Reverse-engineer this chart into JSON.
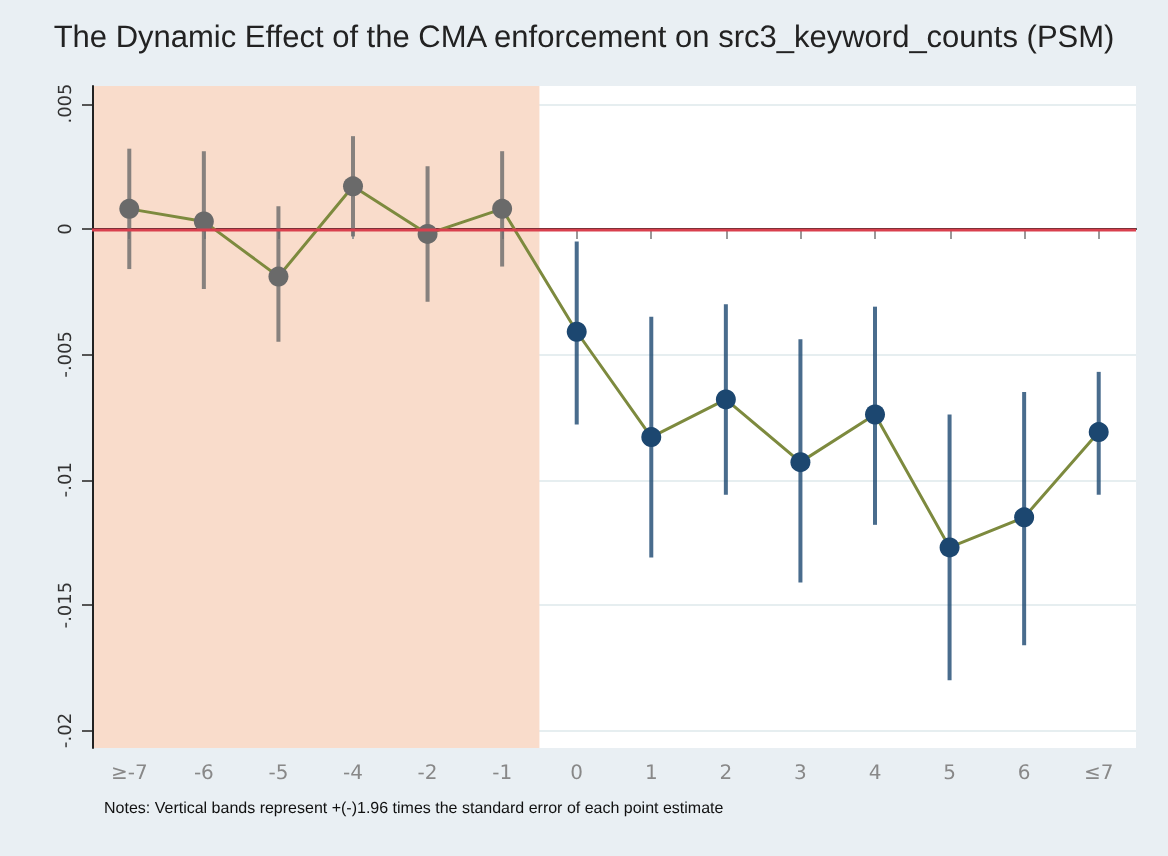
{
  "chart_data": {
    "type": "line",
    "title": "The Dynamic Effect of the CMA enforcement on src3_keyword_counts (PSM)",
    "categories": [
      "≥-7",
      "-6",
      "-5",
      "-4",
      "-2",
      "-1",
      "0",
      "1",
      "2",
      "3",
      "4",
      "5",
      "6",
      "≤7"
    ],
    "series": [
      {
        "color": "#7d8a3e",
        "colors": [
          "#6a6a6a",
          "#6a6a6a",
          "#6a6a6a",
          "#6a6a6a",
          "#6a6a6a",
          "#6a6a6a",
          "#1c4770",
          "#1c4770",
          "#1c4770",
          "#1c4770",
          "#1c4770",
          "#1c4770",
          "#1c4770",
          "#1c4770"
        ],
        "values": [
          0.0008,
          0.0003,
          -0.0019,
          0.0017,
          -0.0002,
          0.0008,
          -0.0041,
          -0.0083,
          -0.0068,
          -0.0093,
          -0.0074,
          -0.0127,
          -0.0115,
          -0.0081
        ],
        "errors": [
          [
            -0.0016,
            0.0032
          ],
          [
            -0.0024,
            0.0031
          ],
          [
            -0.0045,
            0.0009
          ],
          [
            -0.0003,
            0.0037
          ],
          [
            -0.0029,
            0.0025
          ],
          [
            -0.0015,
            0.0031
          ],
          [
            -0.0078,
            -0.0005
          ],
          [
            -0.0131,
            -0.0035
          ],
          [
            -0.0106,
            -0.003
          ],
          [
            -0.0141,
            -0.0044
          ],
          [
            -0.0118,
            -0.0031
          ],
          [
            -0.018,
            -0.0074
          ],
          [
            -0.0166,
            -0.0065
          ],
          [
            -0.0106,
            -0.0057
          ]
        ]
      }
    ],
    "ylim": [
      -0.0207,
      0.0057
    ],
    "yticks": [
      {
        "value": -0.02,
        "label": "-.02"
      },
      {
        "value": -0.015,
        "label": "-.015"
      },
      {
        "value": -0.01,
        "label": "-.01"
      },
      {
        "value": -0.005,
        "label": "-.005"
      },
      {
        "value": 0,
        "label": "0"
      },
      {
        "value": 0.005,
        "label": ".005"
      }
    ],
    "ref_lines": [
      {
        "axis": "y",
        "value": 0,
        "color": "#d9404e"
      }
    ],
    "bands": [
      {
        "axis": "x",
        "from": "≥-7",
        "to": "-1",
        "color": "#f9dccb"
      }
    ],
    "grid": "y",
    "marker": "circle",
    "line_style": "solid",
    "annotations": [
      "Notes: Vertical bands represent +(-)1.96 times the standard error of each point estimate"
    ]
  }
}
